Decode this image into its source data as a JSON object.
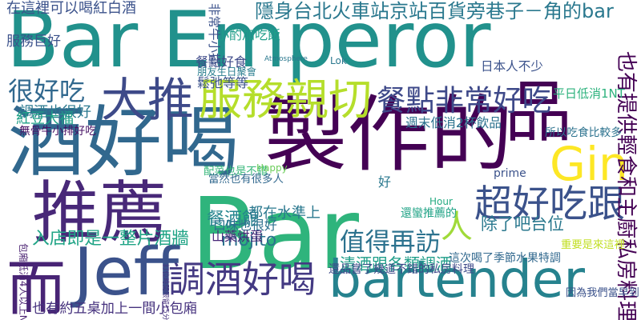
{
  "words": [
    {
      "text": "Bar Emperor",
      "color": "#21918c"
    },
    {
      "text": "製作的",
      "color": "#440154"
    },
    {
      "text": "Bar",
      "color": "#2fb47c"
    },
    {
      "text": "酒好喝",
      "color": "#31688e"
    },
    {
      "text": "bartender",
      "color": "#26828e"
    },
    {
      "text": "推薦",
      "color": "#482878"
    },
    {
      "text": "大推",
      "color": "#3e4a89"
    },
    {
      "text": "服務親切",
      "color": "#b5de2b"
    },
    {
      "text": "調酒好喝",
      "color": "#443a83"
    },
    {
      "text": "Jeff",
      "color": "#3b528b"
    },
    {
      "text": "品",
      "color": "#440154"
    },
    {
      "text": "而",
      "color": "#482475"
    },
    {
      "text": "餐點非常好吃",
      "color": "#3e4989"
    },
    {
      "text": "超好吃跟",
      "color": "#3b528b"
    },
    {
      "text": "人",
      "color": "#a0da39"
    },
    {
      "text": "Gin",
      "color": "#fde725"
    },
    {
      "text": "隱身台北火車站京站百貨旁巷子－角的bar",
      "color": "#2a788e"
    },
    {
      "text": "很好吃",
      "color": "#31688e"
    },
    {
      "text": "值得再訪",
      "color": "#2c728e"
    },
    {
      "text": "餐酒館",
      "color": "#25858e"
    },
    {
      "text": "入店即是一整片酒牆",
      "color": "#20a486"
    },
    {
      "text": "在這裡可以喝紅白酒",
      "color": "#3b528b"
    },
    {
      "text": "mojito",
      "color": "#2c728e"
    },
    {
      "text": "清酒跟各類調酒",
      "color": "#1f9e89"
    },
    {
      "text": "除了吧台位",
      "color": "#2a788e"
    },
    {
      "text": "也有約五桌加上一間小包廂",
      "color": "#46327e"
    },
    {
      "text": "也有提供輕食和主廚私房料理",
      "color": "#440154"
    },
    {
      "text": "服務巨好",
      "color": "#3b528b"
    },
    {
      "text": "調酒也很好",
      "color": "#2a788e"
    },
    {
      "text": "紅豆大福",
      "color": "#1fa187"
    },
    {
      "text": "無骨牛小排好吃",
      "color": "#471164"
    },
    {
      "text": "配菜也是不錯",
      "color": "#35b779"
    },
    {
      "text": "當然也有很多人",
      "color": "#31688e"
    },
    {
      "text": "口味也很好",
      "color": "#2d708e"
    },
    {
      "text": "山藥烘蛋",
      "color": "#482878"
    },
    {
      "text": "都在水準上",
      "color": "#2a788e"
    },
    {
      "text": "餐點好食",
      "color": "#3e4a89"
    },
    {
      "text": "朋友生日聚會",
      "color": "#287d8e"
    },
    {
      "text": "鬆弛等等",
      "color": "#3b528b"
    },
    {
      "text": "日本人不少",
      "color": "#3b528b"
    },
    {
      "text": "平日低消1NT",
      "color": "#2db27d"
    },
    {
      "text": "所以吃食比較多",
      "color": "#2c728e"
    },
    {
      "text": "週末低消2杯飲品",
      "color": "#2c728e"
    },
    {
      "text": "還蠻推薦的",
      "color": "#20a386"
    },
    {
      "text": "重要是來這裡",
      "color": "#c2df23"
    },
    {
      "text": "這次喝了季節水果特調",
      "color": "#31688e"
    },
    {
      "text": "還品嘗了幾道不錯的私房料理",
      "color": "#3e4989"
    },
    {
      "text": "因為我們當早到",
      "color": "#3b528b"
    },
    {
      "text": "訂位時間限留15分鐘",
      "color": "#46327e"
    },
    {
      "text": "包廂低消4人以上NT",
      "color": "#481f70"
    },
    {
      "text": "小酌加吃飯",
      "color": "#1f9e89"
    },
    {
      "text": "非常牛小排",
      "color": "#3b528b"
    },
    {
      "text": "prime",
      "color": "#3b528b"
    },
    {
      "text": "Atmosphere",
      "color": "#2a788e"
    },
    {
      "text": "Hour",
      "color": "#25ab82"
    },
    {
      "text": "Happy",
      "color": "#6ccd5a"
    },
    {
      "text": "好",
      "color": "#2a788e"
    },
    {
      "text": "Lok",
      "color": "#2a788e"
    }
  ]
}
